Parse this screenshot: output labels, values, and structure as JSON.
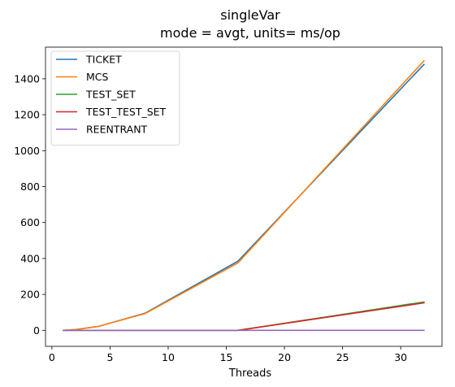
{
  "chart_data": {
    "type": "line",
    "title": "singleVar",
    "subtitle": "mode = avgt, units= ms/op",
    "xlabel": "Threads",
    "ylabel": "",
    "xlim": [
      -0.55,
      33.55
    ],
    "ylim": [
      -89,
      1576
    ],
    "xticks": [
      0,
      5,
      10,
      15,
      20,
      25,
      30
    ],
    "yticks": [
      0,
      200,
      400,
      600,
      800,
      1000,
      1200,
      1400
    ],
    "grid": false,
    "legend_position": "top-left",
    "series": [
      {
        "name": "TICKET",
        "color": "#1f77b4",
        "x": [
          1,
          2,
          4,
          8,
          16,
          32
        ],
        "y": [
          0,
          4,
          22,
          95,
          385,
          1480
        ]
      },
      {
        "name": "MCS",
        "color": "#ff7f0e",
        "x": [
          1,
          2,
          4,
          8,
          16,
          32
        ],
        "y": [
          0,
          4,
          22,
          93,
          375,
          1500
        ]
      },
      {
        "name": "TEST_SET",
        "color": "#2ca02c",
        "x": [
          1,
          2,
          4,
          8,
          16,
          32
        ],
        "y": [
          0,
          0,
          0,
          0,
          0,
          158
        ]
      },
      {
        "name": "TEST_TEST_SET",
        "color": "#d62728",
        "x": [
          1,
          2,
          4,
          8,
          16,
          32
        ],
        "y": [
          0,
          0,
          0,
          0,
          0,
          153
        ]
      },
      {
        "name": "REENTRANT",
        "color": "#9467bd",
        "x": [
          1,
          2,
          4,
          8,
          16,
          32
        ],
        "y": [
          0,
          0,
          0,
          0,
          0,
          0
        ]
      }
    ]
  }
}
